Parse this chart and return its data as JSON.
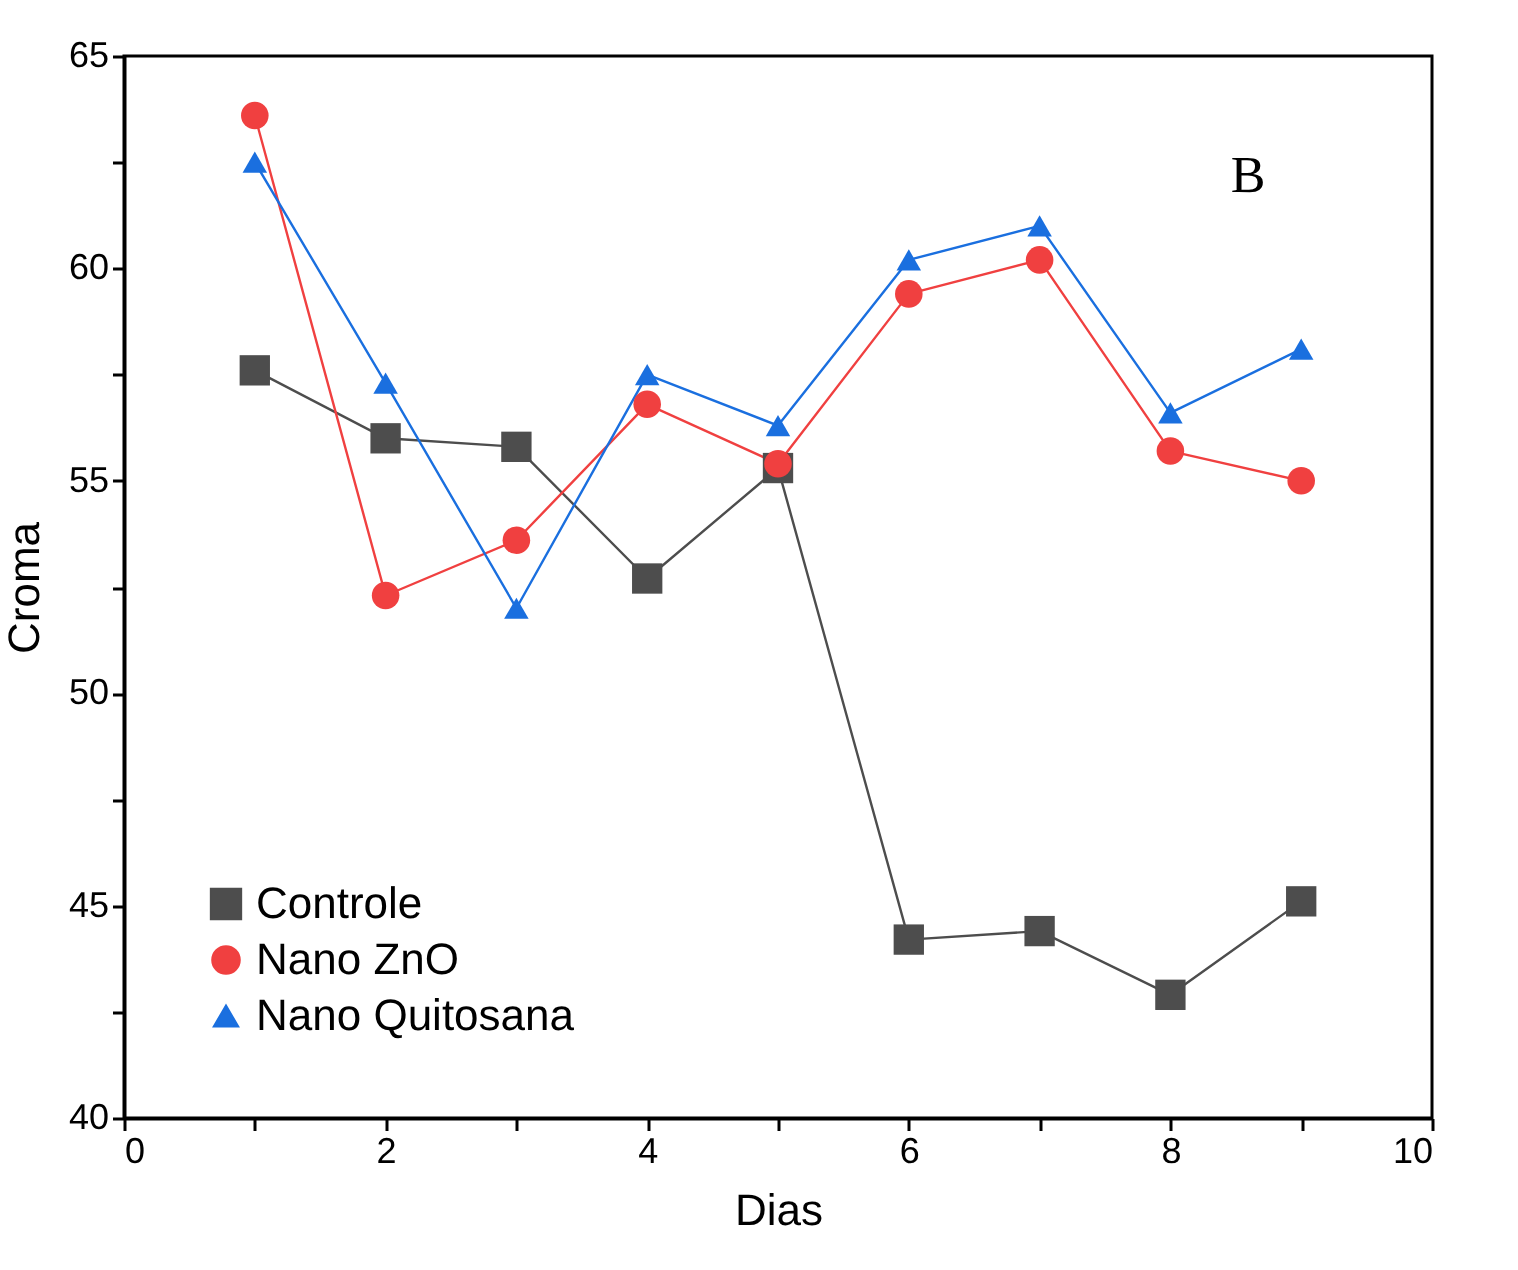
{
  "chart_data": {
    "type": "line",
    "xlabel": "Dias",
    "ylabel": "Croma",
    "xlim": [
      0,
      10
    ],
    "xticks": [
      0,
      {
        "value": 1,
        "label": null
      },
      2,
      {
        "value": 3,
        "label": null
      },
      4,
      {
        "value": 5,
        "label": null
      },
      6,
      {
        "value": 7,
        "label": null
      },
      8,
      {
        "value": 9,
        "label": null
      },
      10
    ],
    "ylim": [
      40,
      65
    ],
    "yticks": [
      40,
      {
        "value": 42.5,
        "label": null
      },
      45,
      {
        "value": 47.5,
        "label": null
      },
      50,
      {
        "value": 52.5,
        "label": null
      },
      55,
      {
        "value": 57.5,
        "label": null
      },
      60,
      {
        "value": 62.5,
        "label": null
      },
      65
    ],
    "x": [
      1,
      2,
      3,
      4,
      5,
      6,
      7,
      8,
      9
    ],
    "series": [
      {
        "name": "Controle",
        "color": "#4d4d4d",
        "marker": "square",
        "values": [
          57.6,
          56.0,
          55.8,
          52.7,
          55.3,
          44.2,
          44.4,
          42.9,
          45.1
        ]
      },
      {
        "name": "Nano ZnO",
        "color": "#f04040",
        "marker": "circle",
        "values": [
          63.6,
          52.3,
          53.6,
          56.8,
          55.4,
          59.4,
          60.2,
          55.7,
          55.0
        ]
      },
      {
        "name": "Nano Quitosana",
        "color": "#1a6fdf",
        "marker": "triangle",
        "values": [
          62.5,
          57.3,
          52.0,
          57.5,
          56.3,
          60.2,
          61.0,
          56.6,
          58.1
        ]
      }
    ],
    "legend": "bottom left",
    "grid": false,
    "line_style": "solid",
    "annotations": [
      "B"
    ]
  }
}
